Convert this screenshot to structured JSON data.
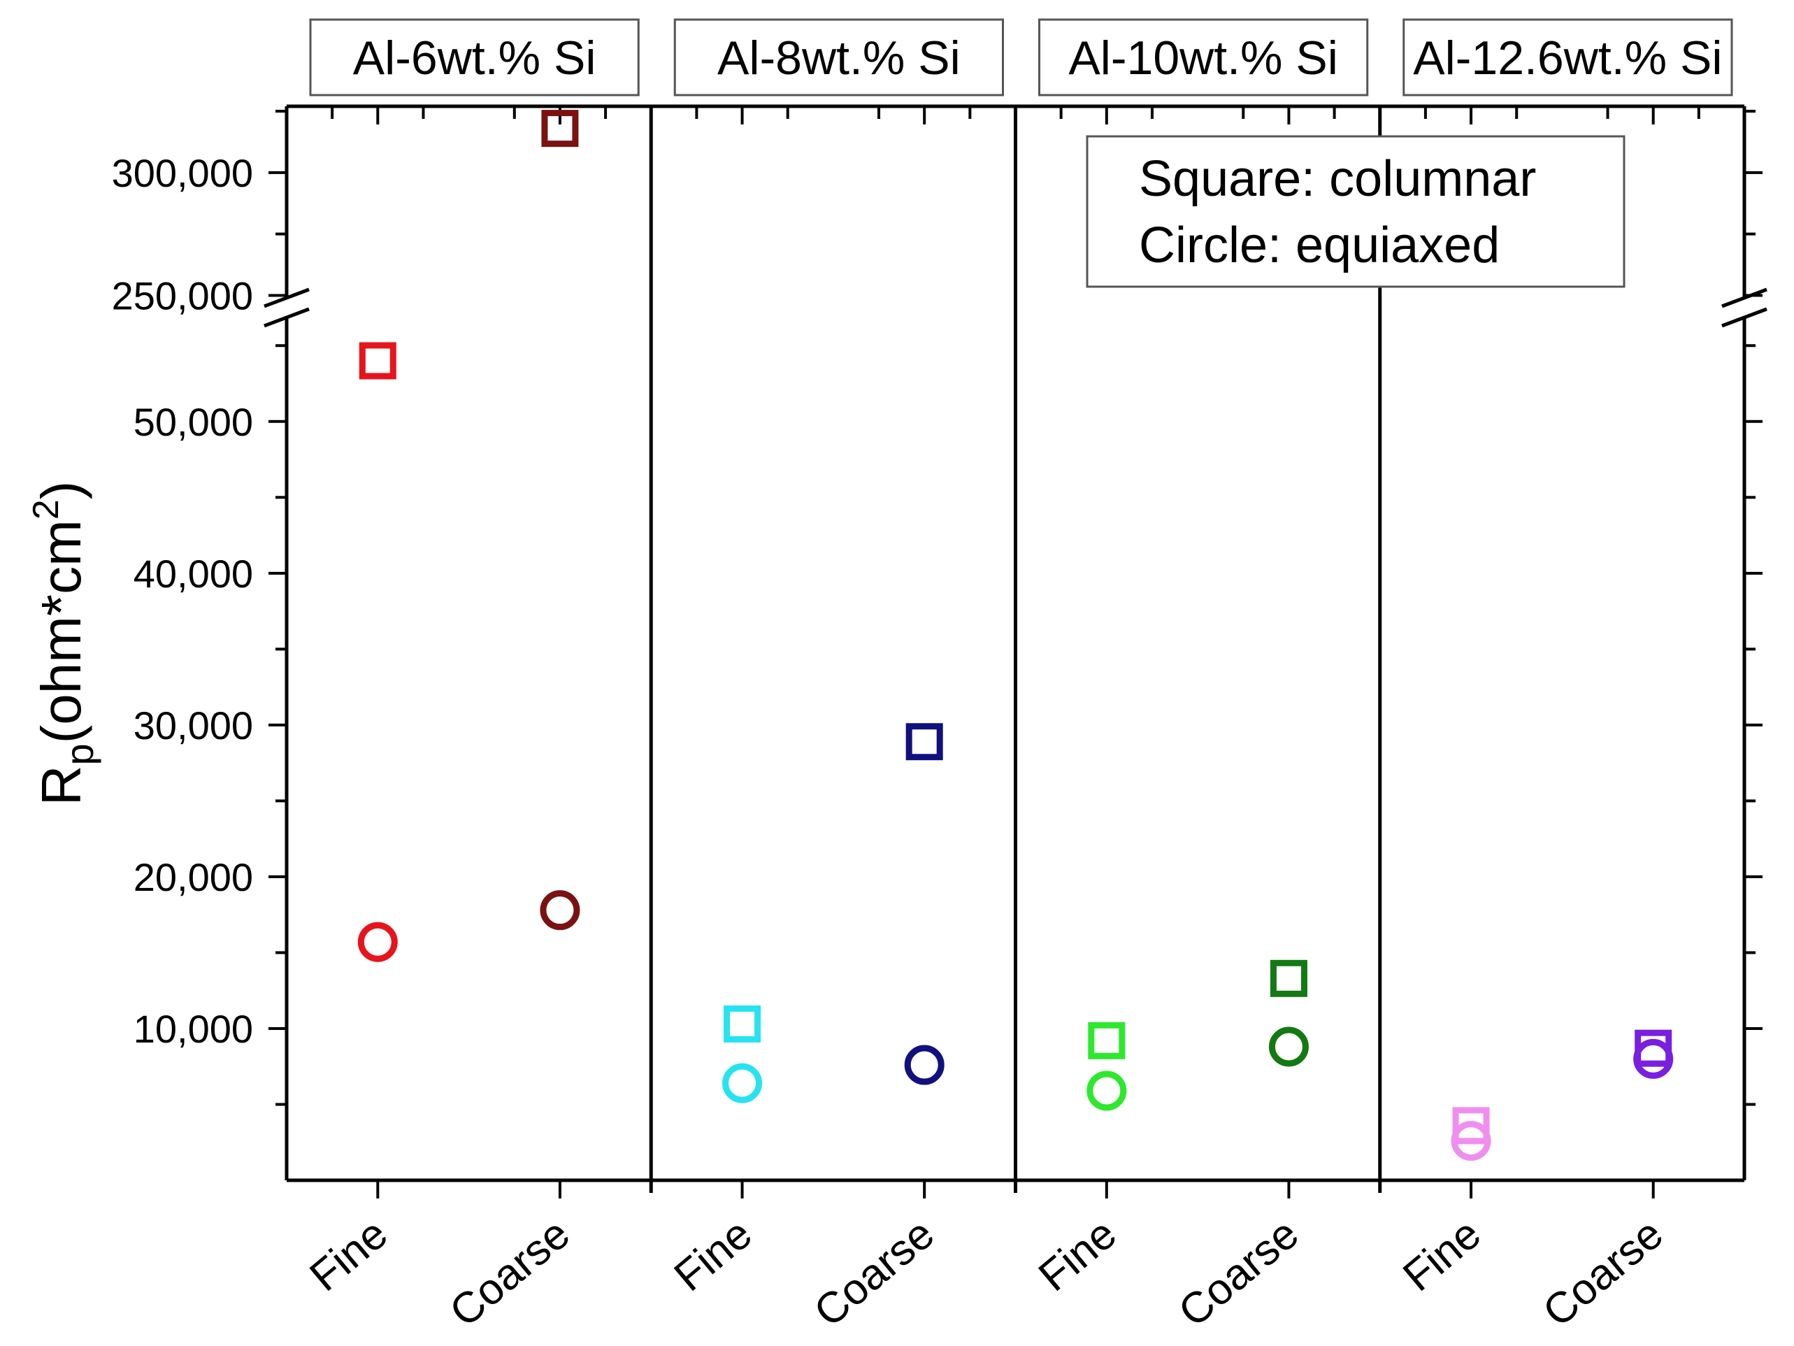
{
  "chart_data": {
    "type": "scatter",
    "ylabel": "R",
    "ylabel_sub": "p",
    "ylabel_unit_pre": "(ohm*cm",
    "ylabel_unit_sup": "2",
    "ylabel_unit_post": ")",
    "y_axis_break": true,
    "ylim_lower": [
      0,
      57500
    ],
    "ylim_upper": [
      245000,
      327000
    ],
    "y_tick_labels": [
      {
        "value": 10000,
        "label": "10,000"
      },
      {
        "value": 20000,
        "label": "20,000"
      },
      {
        "value": 30000,
        "label": "30,000"
      },
      {
        "value": 40000,
        "label": "40,000"
      },
      {
        "value": 50000,
        "label": "50,000"
      },
      {
        "value": 250000,
        "label": "250,000"
      },
      {
        "value": 300000,
        "label": "300,000"
      }
    ],
    "y_minor_ticks": [
      5000,
      15000,
      25000,
      35000,
      45000,
      55000,
      275000,
      325000
    ],
    "categories": [
      "Fine",
      "Coarse"
    ],
    "panels": [
      {
        "title": "Al-6wt.% Si",
        "points": [
          {
            "category": "Fine",
            "shape": "square",
            "value": 54000,
            "color": "#e8141c"
          },
          {
            "category": "Fine",
            "shape": "circle",
            "value": 15700,
            "color": "#e8141c"
          },
          {
            "category": "Coarse",
            "shape": "square",
            "value": 318000,
            "color": "#7a1212"
          },
          {
            "category": "Coarse",
            "shape": "circle",
            "value": 17800,
            "color": "#7a1212"
          }
        ]
      },
      {
        "title": "Al-8wt.% Si",
        "points": [
          {
            "category": "Fine",
            "shape": "square",
            "value": 10300,
            "color": "#27e3f0"
          },
          {
            "category": "Fine",
            "shape": "circle",
            "value": 6400,
            "color": "#27e3f0"
          },
          {
            "category": "Coarse",
            "shape": "square",
            "value": 28900,
            "color": "#10107e"
          },
          {
            "category": "Coarse",
            "shape": "circle",
            "value": 7600,
            "color": "#10107e"
          }
        ]
      },
      {
        "title": "Al-10wt.% Si",
        "points": [
          {
            "category": "Fine",
            "shape": "square",
            "value": 9200,
            "color": "#2ee82e"
          },
          {
            "category": "Fine",
            "shape": "circle",
            "value": 5900,
            "color": "#2ee82e"
          },
          {
            "category": "Coarse",
            "shape": "square",
            "value": 13300,
            "color": "#137a13"
          },
          {
            "category": "Coarse",
            "shape": "circle",
            "value": 8800,
            "color": "#137a13"
          }
        ]
      },
      {
        "title": "Al-12.6wt.% Si",
        "points": [
          {
            "category": "Fine",
            "shape": "square",
            "value": 3600,
            "color": "#f08ef0"
          },
          {
            "category": "Fine",
            "shape": "circle",
            "value": 2600,
            "color": "#f08ef0"
          },
          {
            "category": "Coarse",
            "shape": "square",
            "value": 8700,
            "color": "#7a1ee0"
          },
          {
            "category": "Coarse",
            "shape": "circle",
            "value": 8000,
            "color": "#7a1ee0"
          }
        ]
      }
    ],
    "legend": {
      "position": "top-right",
      "lines": [
        "Square: columnar",
        "Circle: equiaxed"
      ]
    },
    "grid": false
  }
}
